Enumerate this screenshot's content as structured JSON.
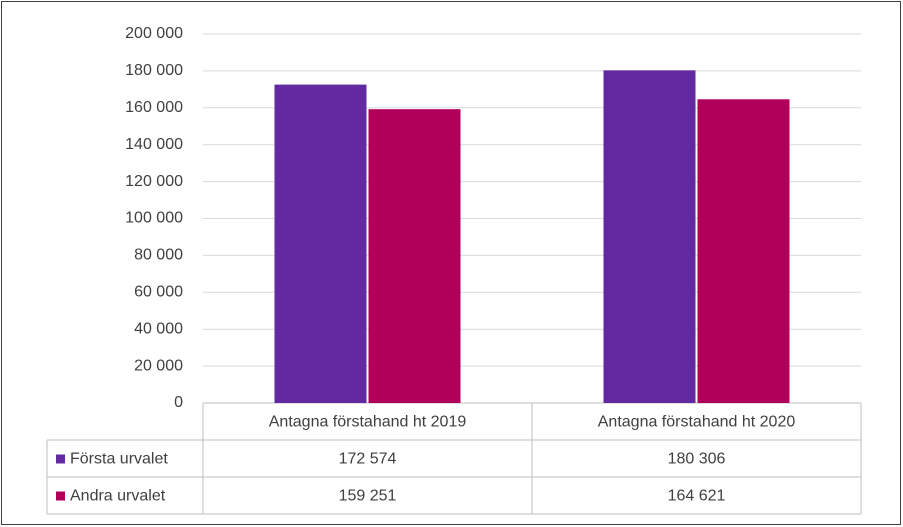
{
  "chart_data": {
    "type": "bar",
    "categories": [
      "Antagna förstahand ht 2019",
      "Antagna förstahand ht 2020"
    ],
    "series": [
      {
        "name": "Första urvalet",
        "color": "#6229a0",
        "values": [
          172574,
          180306
        ],
        "value_labels": [
          "172 574",
          "180 306"
        ]
      },
      {
        "name": "Andra urvalet",
        "color": "#b0005a",
        "values": [
          159251,
          164621
        ],
        "value_labels": [
          "159 251",
          "164 621"
        ]
      }
    ],
    "ylim": [
      0,
      200000
    ],
    "yticks": [
      0,
      {
        "value": 20000,
        "label": "20 000"
      },
      {
        "value": 40000,
        "label": "40 000"
      },
      {
        "value": 60000,
        "label": "60 000"
      },
      {
        "value": 80000,
        "label": "80 000"
      },
      {
        "value": 100000,
        "label": "100 000"
      },
      {
        "value": 120000,
        "label": "120 000"
      },
      {
        "value": 140000,
        "label": "140 000"
      },
      {
        "value": 160000,
        "label": "160 000"
      },
      {
        "value": 180000,
        "label": "180 000"
      },
      {
        "value": 200000,
        "label": "200 000"
      }
    ],
    "grid": true
  }
}
